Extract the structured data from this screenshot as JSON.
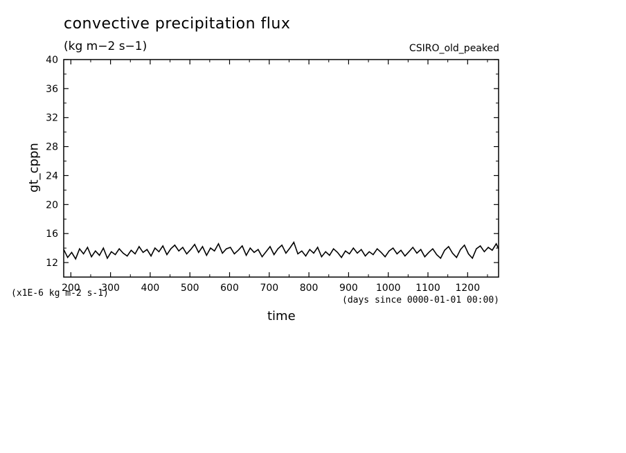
{
  "chart_data": {
    "type": "line",
    "title": "convective precipitation flux",
    "units": "(kg m−2 s−1)",
    "dataset_label": "CSIRO_old_peaked",
    "xlabel": "time",
    "ylabel": "gt_cppn",
    "scale_note": "(x1E-6 kg m-2 s-1)",
    "time_axis_note": "(days since 0000-01-01 00:00)",
    "xlim": [
      182,
      1278
    ],
    "ylim": [
      10,
      40
    ],
    "x_ticks": [
      200,
      300,
      400,
      500,
      600,
      700,
      800,
      900,
      1000,
      1100,
      1200
    ],
    "y_ticks": [
      12,
      16,
      20,
      24,
      28,
      32,
      36,
      40
    ],
    "grid": false,
    "line_color": "#000000",
    "series": [
      {
        "x": [
          182,
          192,
          202,
          212,
          222,
          232,
          242,
          252,
          262,
          272,
          282,
          292,
          302,
          312,
          322,
          332,
          342,
          352,
          362,
          372,
          382,
          392,
          402,
          412,
          422,
          432,
          442,
          452,
          462,
          472,
          482,
          492,
          502,
          512,
          522,
          532,
          542,
          552,
          562,
          572,
          582,
          592,
          602,
          612,
          622,
          632,
          642,
          652,
          662,
          672,
          682,
          692,
          702,
          712,
          722,
          732,
          742,
          752,
          762,
          772,
          782,
          792,
          802,
          812,
          822,
          832,
          842,
          852,
          862,
          872,
          882,
          892,
          902,
          912,
          922,
          932,
          942,
          952,
          962,
          972,
          982,
          992,
          1002,
          1012,
          1022,
          1032,
          1042,
          1052,
          1062,
          1072,
          1082,
          1092,
          1102,
          1112,
          1122,
          1132,
          1142,
          1152,
          1162,
          1172,
          1182,
          1192,
          1202,
          1212,
          1222,
          1232,
          1242,
          1252,
          1262,
          1272,
          1278
        ],
        "y": [
          13.8,
          12.7,
          13.4,
          12.5,
          13.9,
          13.2,
          14.1,
          12.8,
          13.6,
          13.0,
          14.0,
          12.6,
          13.5,
          13.1,
          13.9,
          13.3,
          12.9,
          13.7,
          13.2,
          14.2,
          13.4,
          13.8,
          12.9,
          14.0,
          13.5,
          14.3,
          13.1,
          13.9,
          14.4,
          13.6,
          14.1,
          13.2,
          13.8,
          14.5,
          13.4,
          14.2,
          13.0,
          14.0,
          13.6,
          14.6,
          13.3,
          13.9,
          14.1,
          13.2,
          13.7,
          14.3,
          13.0,
          14.0,
          13.4,
          13.8,
          12.8,
          13.5,
          14.2,
          13.1,
          13.9,
          14.4,
          13.3,
          14.0,
          14.8,
          13.2,
          13.6,
          12.9,
          13.8,
          13.3,
          14.1,
          12.8,
          13.5,
          13.0,
          13.9,
          13.4,
          12.7,
          13.6,
          13.2,
          14.0,
          13.3,
          13.8,
          12.9,
          13.5,
          13.1,
          13.9,
          13.4,
          12.8,
          13.6,
          14.0,
          13.2,
          13.7,
          12.9,
          13.5,
          14.1,
          13.3,
          13.8,
          12.8,
          13.4,
          13.9,
          13.1,
          12.6,
          13.7,
          14.2,
          13.3,
          12.7,
          13.8,
          14.4,
          13.2,
          12.6,
          13.9,
          14.3,
          13.5,
          14.1,
          13.7,
          14.6,
          13.9
        ]
      }
    ]
  }
}
